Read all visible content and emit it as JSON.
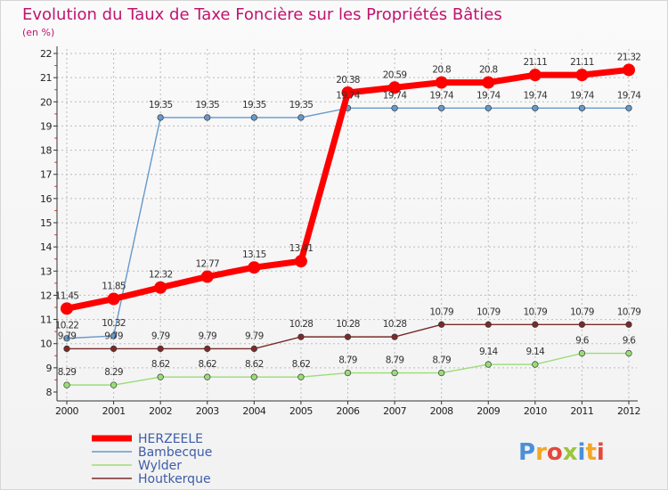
{
  "chart_data": {
    "type": "line",
    "title": "Evolution du Taux de Taxe Foncière sur les Propriétés Bâties",
    "ylabel": "(en %)",
    "x": [
      "2000",
      "2001",
      "2002",
      "2003",
      "2004",
      "2005",
      "2006",
      "2007",
      "2008",
      "2009",
      "2010",
      "2011",
      "2012"
    ],
    "yticks": [
      "8",
      "9",
      "10",
      "11",
      "12",
      "13",
      "14",
      "15",
      "16",
      "17",
      "18",
      "19",
      "20",
      "21",
      "22"
    ],
    "ylim": [
      8,
      22
    ],
    "series": [
      {
        "name": "HERZEELE",
        "color": "#ff0000",
        "values": [
          11.45,
          11.85,
          12.32,
          12.77,
          13.15,
          13.41,
          20.38,
          20.59,
          20.8,
          20.8,
          21.11,
          21.11,
          21.32
        ],
        "labels": [
          "11.45",
          "11.85",
          "12.32",
          "12.77",
          "13.15",
          "13.41",
          "20.38",
          "20.59",
          "20.8",
          "20.8",
          "21.11",
          "21.11",
          "21.32"
        ]
      },
      {
        "name": "Bambecque",
        "color": "#6699cc",
        "values": [
          10.22,
          10.32,
          19.35,
          19.35,
          19.35,
          19.35,
          19.74,
          19.74,
          19.74,
          19.74,
          19.74,
          19.74,
          19.74
        ],
        "labels": [
          "10.22",
          "10.32",
          "19.35",
          "19.35",
          "19.35",
          "19.35",
          "19.74",
          "19.74",
          "19.74",
          "19.74",
          "19.74",
          "19.74",
          "19.74"
        ]
      },
      {
        "name": "Wylder",
        "color": "#99dd77",
        "values": [
          8.29,
          8.29,
          8.62,
          8.62,
          8.62,
          8.62,
          8.79,
          8.79,
          8.79,
          9.14,
          9.14,
          9.6,
          9.6
        ],
        "labels": [
          "8.29",
          "8.29",
          "8.62",
          "8.62",
          "8.62",
          "8.62",
          "8.79",
          "8.79",
          "8.79",
          "9.14",
          "9.14",
          "9.6",
          "9.6"
        ]
      },
      {
        "name": "Houtkerque",
        "color": "#7a2a2a",
        "values": [
          9.79,
          9.79,
          9.79,
          9.79,
          9.79,
          10.28,
          10.28,
          10.28,
          10.79,
          10.79,
          10.79,
          10.79,
          10.79
        ],
        "labels": [
          "9.79",
          "9.79",
          "9.79",
          "9.79",
          "9.79",
          "10.28",
          "10.28",
          "10.28",
          "10.79",
          "10.79",
          "10.79",
          "10.79",
          "10.79"
        ]
      }
    ],
    "legend": "bottom-left"
  },
  "logo": {
    "text": "Proxiti",
    "colors": [
      "#4a90d9",
      "#f5a623",
      "#e14a3b",
      "#9bc53d",
      "#4a90d9",
      "#f5a623",
      "#e14a3b"
    ]
  }
}
